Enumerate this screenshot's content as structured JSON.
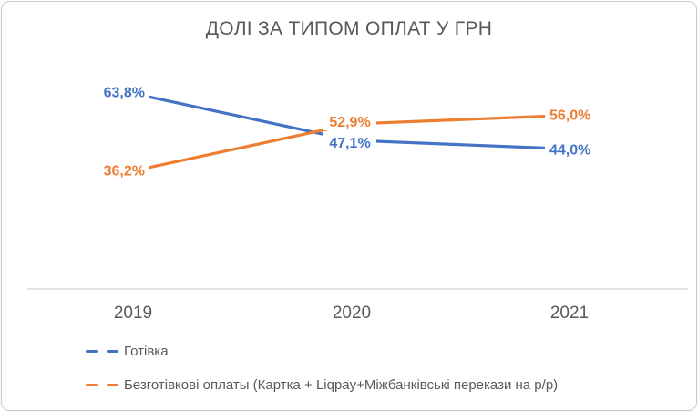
{
  "chart_data": {
    "type": "line",
    "title": "ДОЛІ ЗА ТИПОМ ОПЛАТ У ГРН",
    "categories": [
      "2019",
      "2020",
      "2021"
    ],
    "series": [
      {
        "name": "Готівка",
        "values": [
          63.8,
          47.1,
          44.0
        ],
        "labels": [
          "63,8%",
          "47,1%",
          "44,0%"
        ],
        "color": "#4472C4"
      },
      {
        "name": "Безготівкові оплаты (Картка + Liqpay+Міжбанківські перекази на р/р)",
        "values": [
          36.2,
          52.9,
          56.0
        ],
        "labels": [
          "36,2%",
          "52,9%",
          "56,0%"
        ],
        "color": "#ED7D31"
      }
    ],
    "ylim": [
      0,
      100
    ],
    "grid": false,
    "legend_position": "bottom-left",
    "colors": {
      "axis_line": "#D9D9D9",
      "text": "#595959",
      "background": "#FFFFFF"
    }
  }
}
